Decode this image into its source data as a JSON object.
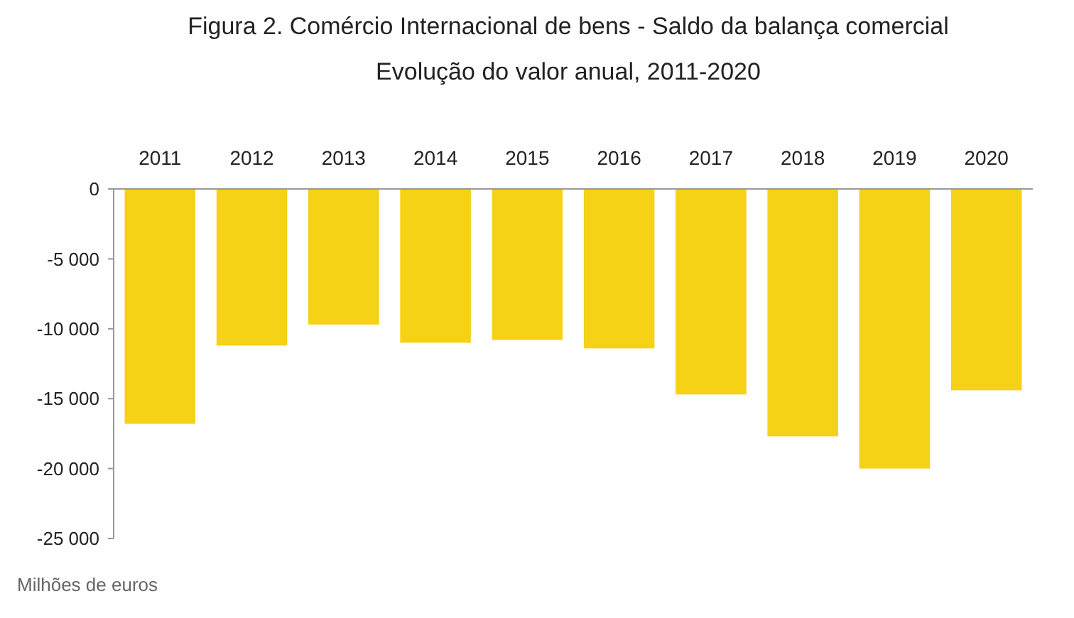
{
  "chart_data": {
    "type": "bar",
    "title": "Figura 2. Comércio Internacional de bens - Saldo da balança comercial",
    "subtitle": "Evolução do valor anual, 2011-2020",
    "categories": [
      "2011",
      "2012",
      "2013",
      "2014",
      "2015",
      "2016",
      "2017",
      "2018",
      "2019",
      "2020"
    ],
    "values": [
      -16800,
      -11200,
      -9700,
      -11000,
      -10800,
      -11400,
      -14700,
      -17700,
      -20000,
      -14400
    ],
    "color": "#f5d216",
    "ylim": [
      -25000,
      0
    ],
    "yticks": [
      {
        "value": -25000,
        "label": "-25 000"
      },
      {
        "value": -20000,
        "label": "-20 000"
      },
      {
        "value": -15000,
        "label": "-15 000"
      },
      {
        "value": -10000,
        "label": "-10 000"
      },
      {
        "value": -5000,
        "label": "-5 000"
      },
      0
    ],
    "annotations": [
      "Milhões de euros"
    ]
  }
}
